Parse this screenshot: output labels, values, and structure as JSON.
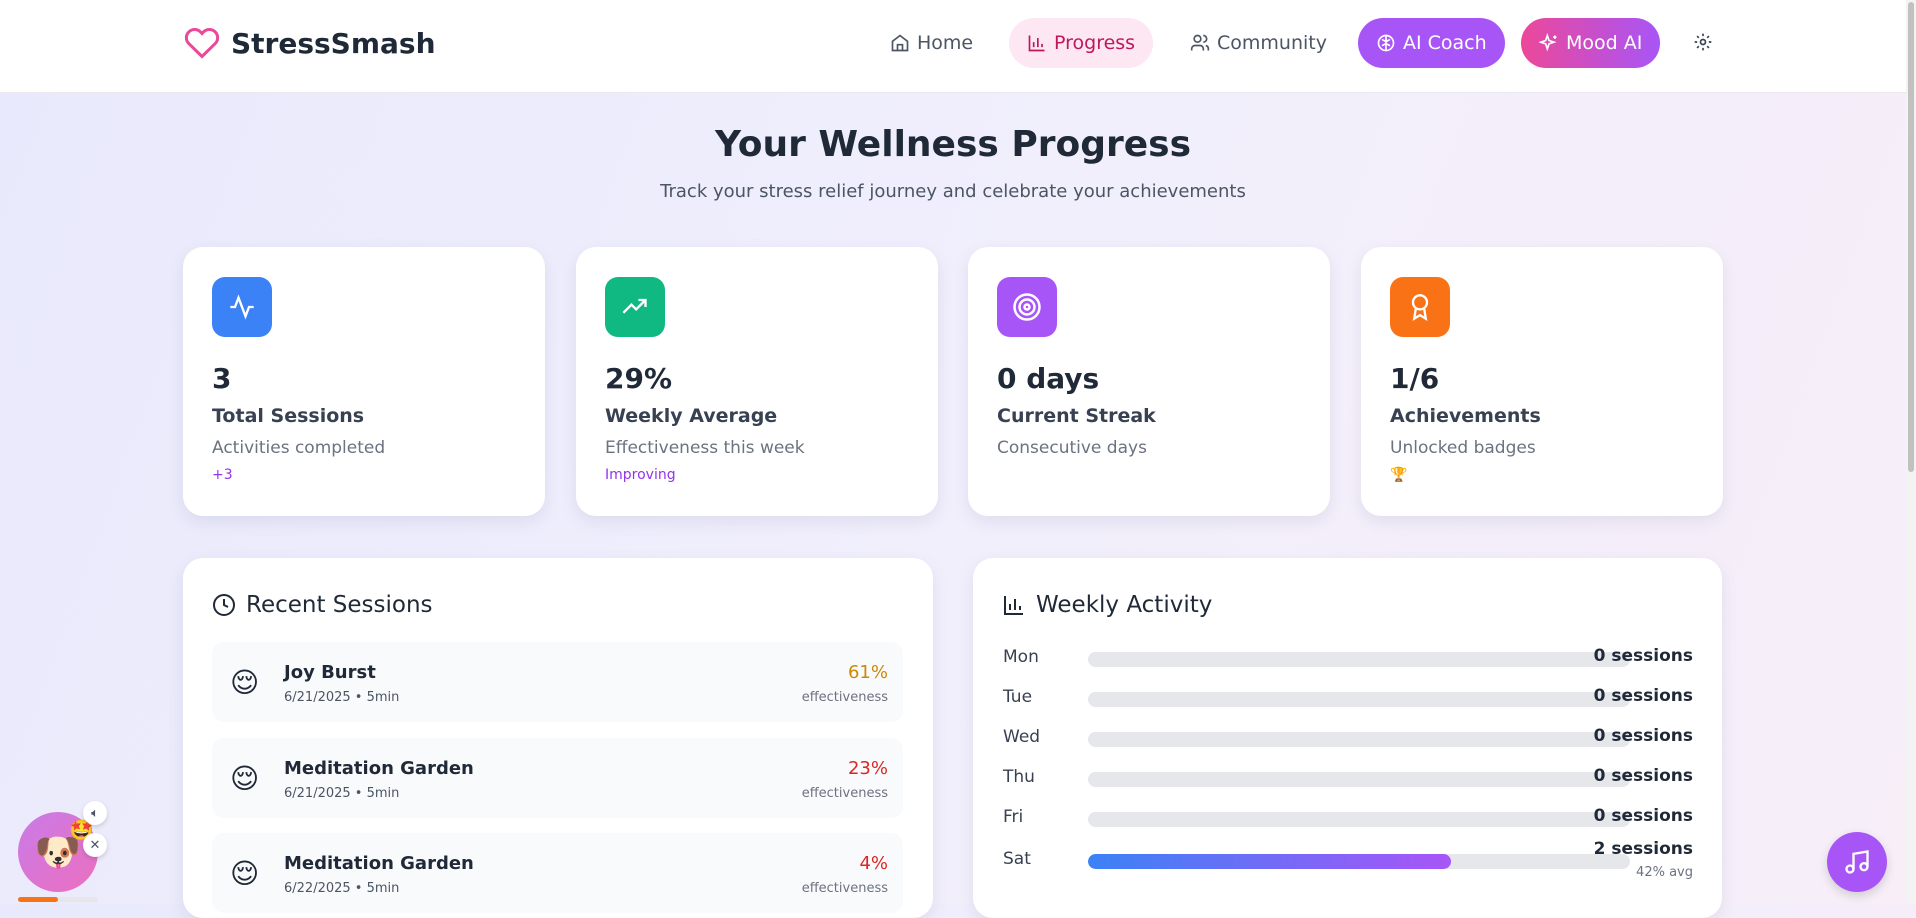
{
  "app": {
    "name": "StressSmash",
    "brand_color": "#ec4899"
  },
  "nav": {
    "home": "Home",
    "progress": "Progress",
    "community": "Community",
    "ai_coach": "AI Coach",
    "mood_ai": "Mood AI",
    "active": "Progress"
  },
  "page": {
    "title": "Your Wellness Progress",
    "subtitle": "Track your stress relief journey and celebrate your achievements"
  },
  "stats": [
    {
      "icon": "activity-icon",
      "color": "#3b82f6",
      "value": "3",
      "label": "Total Sessions",
      "desc": "Activities completed",
      "tag": "+3"
    },
    {
      "icon": "trending-up-icon",
      "color": "#10b981",
      "value": "29%",
      "label": "Weekly Average",
      "desc": "Effectiveness this week",
      "tag": "Improving"
    },
    {
      "icon": "target-icon",
      "color": "#a855f7",
      "value": "0 days",
      "label": "Current Streak",
      "desc": "Consecutive days",
      "tag": ""
    },
    {
      "icon": "award-icon",
      "color": "#f97316",
      "value": "1/6",
      "label": "Achievements",
      "desc": "Unlocked badges",
      "tag": "🏆"
    }
  ],
  "recent": {
    "title": "Recent Sessions",
    "items": [
      {
        "emoji": "😌",
        "name": "Joy Burst",
        "meta": "6/21/2025 • 5min",
        "pct": "61%",
        "pct_color": "#ca8a04",
        "eff": "effectiveness"
      },
      {
        "emoji": "😌",
        "name": "Meditation Garden",
        "meta": "6/21/2025 • 5min",
        "pct": "23%",
        "pct_color": "#dc2626",
        "eff": "effectiveness"
      },
      {
        "emoji": "😌",
        "name": "Meditation Garden",
        "meta": "6/22/2025 • 5min",
        "pct": "4%",
        "pct_color": "#dc2626",
        "eff": "effectiveness"
      }
    ]
  },
  "weekly": {
    "title": "Weekly Activity",
    "days": [
      {
        "day": "Mon",
        "count": "0 sessions",
        "fill_percent": 0,
        "avg": ""
      },
      {
        "day": "Tue",
        "count": "0 sessions",
        "fill_percent": 0,
        "avg": ""
      },
      {
        "day": "Wed",
        "count": "0 sessions",
        "fill_percent": 0,
        "avg": ""
      },
      {
        "day": "Thu",
        "count": "0 sessions",
        "fill_percent": 0,
        "avg": ""
      },
      {
        "day": "Fri",
        "count": "0 sessions",
        "fill_percent": 0,
        "avg": ""
      },
      {
        "day": "Sat",
        "count": "2 sessions",
        "fill_percent": 67,
        "avg": "42% avg"
      }
    ]
  },
  "mascot": {
    "emoji": "🐶",
    "badge": "🤩",
    "progress_percent": 50
  }
}
